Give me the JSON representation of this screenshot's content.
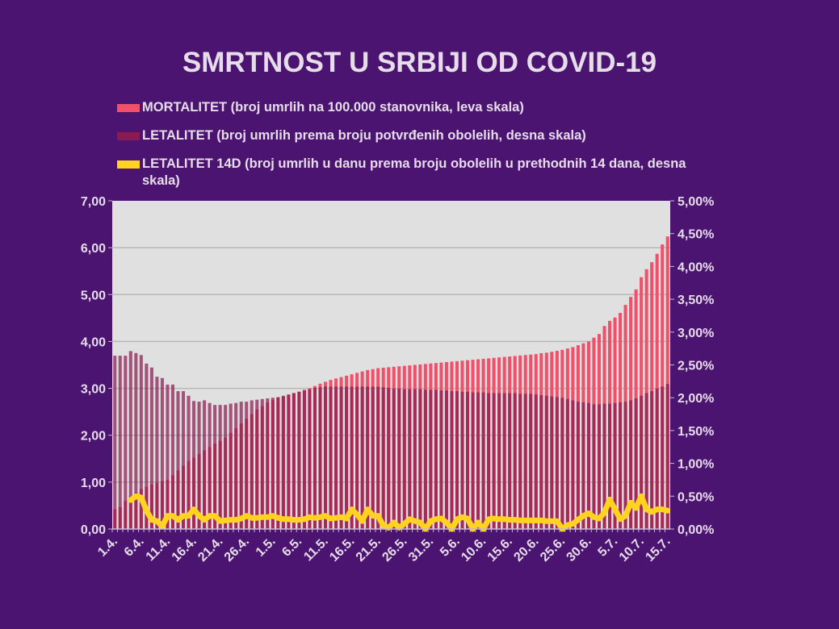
{
  "chart_data": {
    "type": "bar",
    "title": "SMRTNOST U SRBIJI OD COVID-19",
    "x_tick_labels": [
      "1.4.",
      "6.4.",
      "11.4.",
      "16.4.",
      "21.4.",
      "26.4.",
      "1.5.",
      "6.5.",
      "11.5.",
      "16.5.",
      "21.5.",
      "26.5.",
      "31.5.",
      "5.6.",
      "10.6.",
      "15.6.",
      "20.6.",
      "25.6.",
      "30.6.",
      "5.7.",
      "10.7.",
      "15.7."
    ],
    "x_range": [
      "1.4.",
      "15.7."
    ],
    "left_axis": {
      "ylim": [
        0,
        7
      ],
      "ticks": [
        "0,00",
        "1,00",
        "2,00",
        "3,00",
        "4,00",
        "5,00",
        "6,00",
        "7,00"
      ]
    },
    "right_axis": {
      "ylim": [
        0,
        5
      ],
      "ticks": [
        "0,00%",
        "0,50%",
        "1,00%",
        "1,50%",
        "2,00%",
        "2,50%",
        "3,00%",
        "3,50%",
        "4,00%",
        "4,50%",
        "5,00%"
      ]
    },
    "grid": true,
    "legend_position": "top",
    "series": [
      {
        "name": "MORTALITET (broj umrlih na 100.000 stanovnika, leva skala)",
        "kind": "bar",
        "axis": "left",
        "color": "#f0506a",
        "values": [
          0.42,
          0.47,
          0.6,
          0.7,
          0.78,
          0.85,
          0.9,
          0.95,
          0.98,
          1.02,
          1.05,
          1.15,
          1.25,
          1.35,
          1.45,
          1.52,
          1.6,
          1.68,
          1.75,
          1.82,
          1.88,
          1.95,
          2.05,
          2.15,
          2.25,
          2.35,
          2.45,
          2.55,
          2.62,
          2.7,
          2.75,
          2.8,
          2.83,
          2.86,
          2.9,
          2.93,
          2.97,
          3.0,
          3.05,
          3.1,
          3.14,
          3.18,
          3.21,
          3.24,
          3.27,
          3.3,
          3.33,
          3.36,
          3.39,
          3.41,
          3.43,
          3.44,
          3.45,
          3.46,
          3.47,
          3.48,
          3.49,
          3.5,
          3.51,
          3.52,
          3.53,
          3.54,
          3.55,
          3.56,
          3.57,
          3.58,
          3.59,
          3.6,
          3.61,
          3.62,
          3.63,
          3.64,
          3.65,
          3.66,
          3.67,
          3.68,
          3.69,
          3.7,
          3.71,
          3.72,
          3.73,
          3.75,
          3.76,
          3.78,
          3.8,
          3.82,
          3.85,
          3.88,
          3.92,
          3.96,
          4.0,
          4.08,
          4.16,
          4.33,
          4.44,
          4.51,
          4.61,
          4.78,
          4.95,
          5.11,
          5.37,
          5.54,
          5.69,
          5.87,
          6.07,
          6.24
        ]
      },
      {
        "name": "LETALITET (broj umrlih prema broju potvrđenih obolelih, desna skala)",
        "kind": "bar",
        "axis": "right",
        "color": "#8b1a50",
        "values": [
          2.64,
          2.64,
          2.64,
          2.71,
          2.68,
          2.65,
          2.52,
          2.46,
          2.32,
          2.3,
          2.2,
          2.2,
          2.1,
          2.1,
          2.03,
          1.95,
          1.94,
          1.96,
          1.92,
          1.89,
          1.89,
          1.89,
          1.91,
          1.92,
          1.94,
          1.94,
          1.96,
          1.97,
          1.98,
          1.99,
          2.0,
          2.01,
          2.03,
          2.05,
          2.07,
          2.09,
          2.11,
          2.13,
          2.15,
          2.16,
          2.17,
          2.17,
          2.17,
          2.17,
          2.17,
          2.17,
          2.17,
          2.17,
          2.17,
          2.17,
          2.17,
          2.16,
          2.15,
          2.14,
          2.14,
          2.13,
          2.13,
          2.13,
          2.13,
          2.12,
          2.12,
          2.12,
          2.11,
          2.11,
          2.1,
          2.1,
          2.09,
          2.09,
          2.08,
          2.08,
          2.08,
          2.07,
          2.07,
          2.07,
          2.07,
          2.07,
          2.07,
          2.06,
          2.06,
          2.06,
          2.05,
          2.04,
          2.03,
          2.02,
          2.01,
          2.0,
          1.98,
          1.96,
          1.94,
          1.93,
          1.92,
          1.9,
          1.9,
          1.91,
          1.91,
          1.92,
          1.93,
          1.94,
          1.96,
          1.99,
          2.03,
          2.07,
          2.1,
          2.14,
          2.17,
          2.21
        ]
      },
      {
        "name": "LETALITET 14D (broj umrlih u danu prema broju obolelih u prethodnih 14 dana, desna skala)",
        "kind": "line",
        "axis": "right",
        "color": "#ffd320",
        "values": [
          null,
          null,
          null,
          0.44,
          0.5,
          0.48,
          0.28,
          0.14,
          0.12,
          0.04,
          0.2,
          0.2,
          0.14,
          0.2,
          0.2,
          0.3,
          0.2,
          0.14,
          0.2,
          0.2,
          0.12,
          0.13,
          0.14,
          0.14,
          0.16,
          0.2,
          0.17,
          0.17,
          0.18,
          0.18,
          0.2,
          0.17,
          0.15,
          0.15,
          0.14,
          0.14,
          0.15,
          0.18,
          0.17,
          0.18,
          0.2,
          0.16,
          0.17,
          0.18,
          0.16,
          0.3,
          0.22,
          0.12,
          0.3,
          0.2,
          0.2,
          0.05,
          0.02,
          0.1,
          0.02,
          0.08,
          0.15,
          0.12,
          0.1,
          0.0,
          0.12,
          0.15,
          0.16,
          0.1,
          0.0,
          0.15,
          0.18,
          0.16,
          0.0,
          0.1,
          0.0,
          0.15,
          0.16,
          0.15,
          0.15,
          0.14,
          0.14,
          0.13,
          0.13,
          0.13,
          0.13,
          0.13,
          0.12,
          0.12,
          0.12,
          0.0,
          0.06,
          0.08,
          0.14,
          0.2,
          0.24,
          0.18,
          0.16,
          0.25,
          0.45,
          0.3,
          0.15,
          0.2,
          0.4,
          0.32,
          0.5,
          0.3,
          0.26,
          0.3,
          0.3,
          0.28
        ]
      }
    ]
  },
  "legend": [
    {
      "label": "MORTALITET (broj umrlih na 100.000 stanovnika, leva skala)"
    },
    {
      "label": "LETALITET (broj umrlih prema broju potvrđenih obolelih, desna skala)"
    },
    {
      "label": "LETALITET 14D (broj umrlih u danu prema broju obolelih u prethodnih 14 dana, desna skala)"
    }
  ],
  "colors": {
    "background": "#4b1470",
    "plot_area": "#e0e0e0",
    "text": "#e6dcea"
  }
}
